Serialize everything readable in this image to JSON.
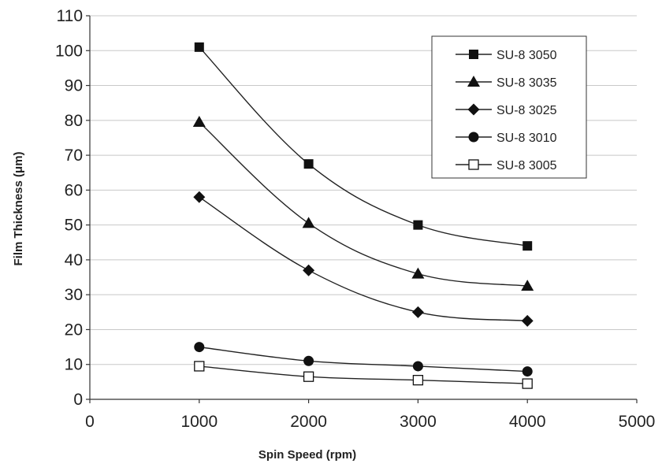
{
  "chart_data": {
    "type": "line",
    "xlabel": "Spin Speed (rpm)",
    "ylabel": "Film Thickness (μm)",
    "xlim": [
      0,
      5000
    ],
    "ylim": [
      0,
      110
    ],
    "x_ticks": [
      0,
      1000,
      2000,
      3000,
      4000,
      5000
    ],
    "y_ticks": [
      0,
      10,
      20,
      30,
      40,
      50,
      60,
      70,
      80,
      90,
      100,
      110
    ],
    "grid": "horizontal",
    "legend_position": "top-right",
    "x": [
      1000,
      2000,
      3000,
      4000
    ],
    "series": [
      {
        "name": "SU-8 3050",
        "marker": "square-filled",
        "values": [
          101,
          67.5,
          50,
          44
        ]
      },
      {
        "name": "SU-8 3035",
        "marker": "triangle-filled",
        "values": [
          79.5,
          50.5,
          36,
          32.5
        ]
      },
      {
        "name": "SU-8 3025",
        "marker": "diamond-filled",
        "values": [
          58,
          37,
          25,
          22.5
        ]
      },
      {
        "name": "SU-8 3010",
        "marker": "circle-filled",
        "values": [
          15,
          11,
          9.5,
          8
        ]
      },
      {
        "name": "SU-8 3005",
        "marker": "square-open",
        "values": [
          9.5,
          6.5,
          5.5,
          4.5
        ]
      }
    ]
  }
}
